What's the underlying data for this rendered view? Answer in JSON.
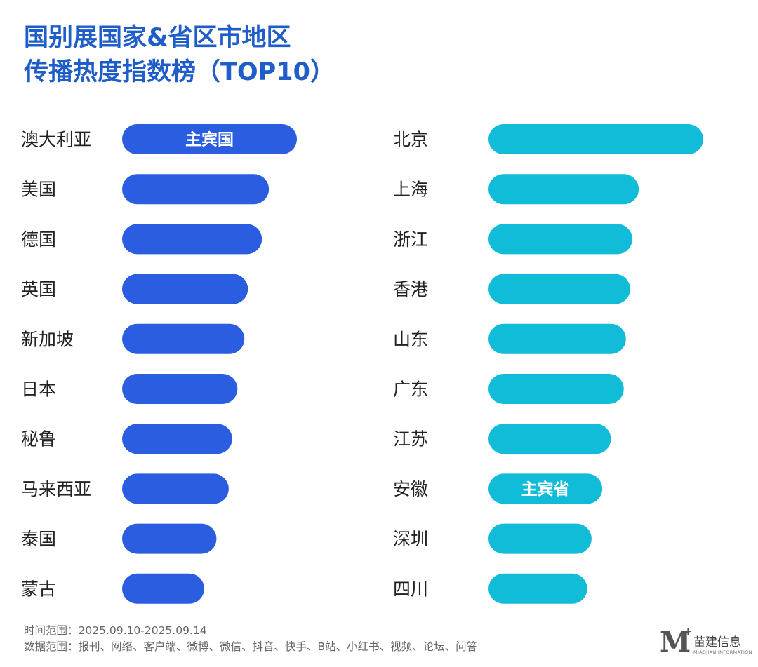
{
  "header": {
    "title_line1": "国别展国家&省区市地区",
    "title_line2": "传播热度指数榜（TOP10）"
  },
  "footer": {
    "time_range": "时间范围：2025.09.10-2025.09.14",
    "data_range": "数据范围：报刊、网络、客户端、微博、微信、抖音、快手、B站、小红书、视频、论坛、问答"
  },
  "logo": {
    "mark": "M",
    "plus": "+",
    "name_cn": "苗建信息",
    "name_en": "MIAOJIAN INFORMATION"
  },
  "chart_data": [
    {
      "type": "bar",
      "orientation": "horizontal",
      "categories": [
        "澳大利亚",
        "美国",
        "德国",
        "英国",
        "新加坡",
        "日本",
        "秘鲁",
        "马来西亚",
        "泰国",
        "蒙古"
      ],
      "values": [
        100,
        84,
        80,
        72,
        70,
        66,
        63,
        61,
        54,
        47
      ],
      "max_value": 100,
      "color": "#2a5de0",
      "annotations": [
        {
          "category": "澳大利亚",
          "text": "主宾国"
        }
      ]
    },
    {
      "type": "bar",
      "orientation": "horizontal",
      "categories": [
        "北京",
        "上海",
        "浙江",
        "香港",
        "山东",
        "广东",
        "江苏",
        "安徽",
        "深圳",
        "四川"
      ],
      "values": [
        100,
        70,
        67,
        66,
        64,
        63,
        57,
        53,
        48,
        46
      ],
      "max_value": 100,
      "color": "#11bcd9",
      "annotations": [
        {
          "category": "安徽",
          "text": "主宾省"
        }
      ]
    }
  ]
}
